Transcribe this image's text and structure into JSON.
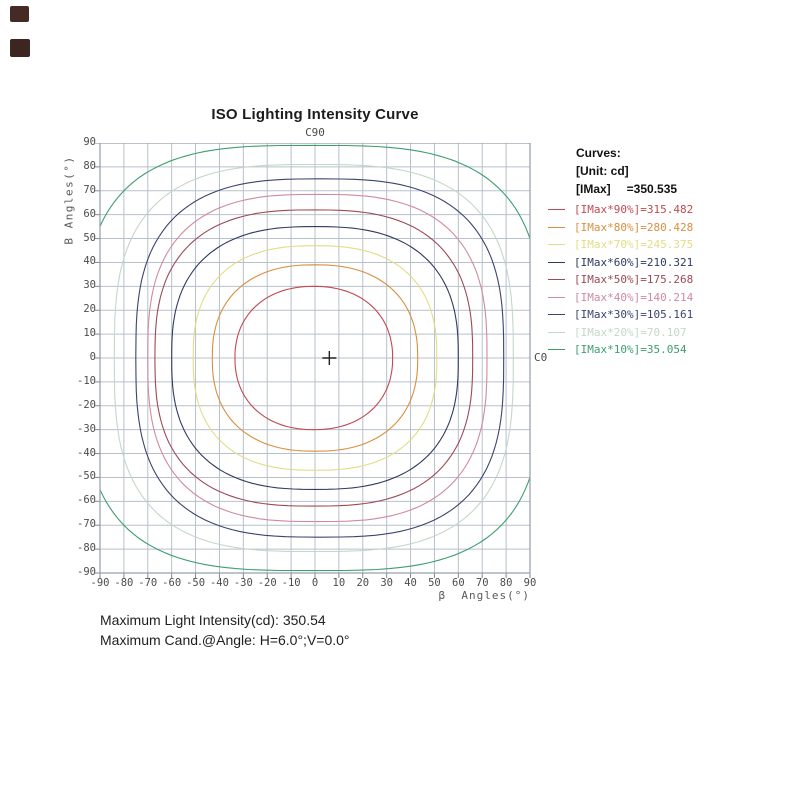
{
  "corner_marks": {
    "colors": [
      "#462a24",
      "#3d2521"
    ]
  },
  "chart_data": {
    "type": "contour",
    "title": "ISO Lighting Intensity Curve",
    "top_plane_label": "C90",
    "right_plane_label": "C0",
    "xlabel": "β  Angles(°)",
    "ylabel": "B Angles(°)",
    "xlim": [
      -90,
      90
    ],
    "ylim": [
      -90,
      90
    ],
    "grid": true,
    "grid_color": "#b7c0cc",
    "border_color": "#949ca9",
    "tick_step": 10,
    "tick_values": [
      -90,
      -80,
      -70,
      -60,
      -50,
      -40,
      -30,
      -20,
      -10,
      0,
      10,
      20,
      30,
      40,
      50,
      60,
      70,
      80,
      90
    ],
    "unit": "cd",
    "imax_cd": 350.535,
    "max_point": {
      "h_deg": 6.0,
      "v_deg": 0.0,
      "marker": "+",
      "marker_color": "#222222"
    },
    "series": [
      {
        "label": "[IMax*90%]",
        "value_cd": 315.482,
        "percent": 90,
        "color": "#c04a50",
        "half_width_deg": 33,
        "half_height_deg": 30,
        "squareness": 2.2,
        "center_x_deg": -0.5
      },
      {
        "label": "[IMax*80%]",
        "value_cd": 280.428,
        "percent": 80,
        "color": "#d98f3e",
        "half_width_deg": 43,
        "half_height_deg": 39,
        "squareness": 2.35,
        "center_x_deg": 0
      },
      {
        "label": "[IMax*70%]",
        "value_cd": 245.375,
        "percent": 70,
        "color": "#e4dc86",
        "half_width_deg": 51,
        "half_height_deg": 47,
        "squareness": 2.5,
        "center_x_deg": 0
      },
      {
        "label": "[IMax*60%]",
        "value_cd": 210.321,
        "percent": 60,
        "color": "#2e3a60",
        "half_width_deg": 60,
        "half_height_deg": 55,
        "squareness": 2.6,
        "center_x_deg": 0
      },
      {
        "label": "[IMax*50%]",
        "value_cd": 175.268,
        "percent": 50,
        "color": "#9c4a54",
        "half_width_deg": 66.5,
        "half_height_deg": 62,
        "squareness": 2.7,
        "center_x_deg": -0.5
      },
      {
        "label": "[IMax*40%]",
        "value_cd": 140.214,
        "percent": 40,
        "color": "#d08a9e",
        "half_width_deg": 71,
        "half_height_deg": 68.5,
        "squareness": 2.8,
        "center_x_deg": 1
      },
      {
        "label": "[IMax*30%]",
        "value_cd": 105.161,
        "percent": 30,
        "color": "#3a4470",
        "half_width_deg": 77,
        "half_height_deg": 75,
        "squareness": 2.9,
        "center_x_deg": 2
      },
      {
        "label": "[IMax*20%]",
        "value_cd": 70.107,
        "percent": 20,
        "color": "#c3d8c6",
        "half_width_deg": 83.5,
        "half_height_deg": 81,
        "squareness": 3.0,
        "center_x_deg": -0.5
      },
      {
        "label": "[IMax*10%]",
        "value_cd": 35.054,
        "percent": 10,
        "color": "#3f9e6e",
        "half_width_deg": 96,
        "half_height_deg": 89,
        "squareness": 3.2,
        "center_x_deg": -1
      }
    ]
  },
  "legend": {
    "header": "Curves:",
    "unit_line": "[Unit: cd]",
    "imax_label": "[IMax]",
    "imax_value": "=350.535"
  },
  "footer": {
    "line1": "Maximum Light Intensity(cd): 350.54",
    "line2": "Maximum Cand.@Angle: H=6.0°;V=0.0°"
  }
}
